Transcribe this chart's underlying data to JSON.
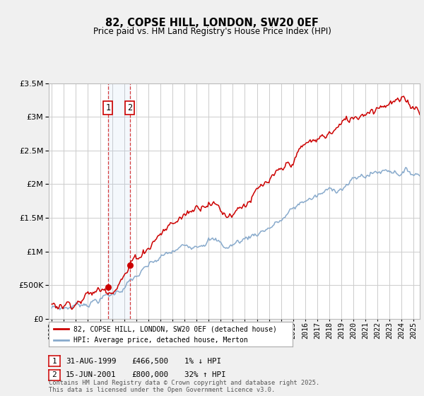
{
  "title": "82, COPSE HILL, LONDON, SW20 0EF",
  "subtitle": "Price paid vs. HM Land Registry's House Price Index (HPI)",
  "legend_line1": "82, COPSE HILL, LONDON, SW20 0EF (detached house)",
  "legend_line2": "HPI: Average price, detached house, Merton",
  "annotation1_date": "31-AUG-1999",
  "annotation1_price": "£466,500",
  "annotation1_hpi": "1% ↓ HPI",
  "annotation2_date": "15-JUN-2001",
  "annotation2_price": "£800,000",
  "annotation2_hpi": "32% ↑ HPI",
  "footnote": "Contains HM Land Registry data © Crown copyright and database right 2025.\nThis data is licensed under the Open Government Licence v3.0.",
  "xmin": 1994.75,
  "xmax": 2025.5,
  "ymin": 0,
  "ymax": 3500000,
  "red_color": "#cc0000",
  "blue_color": "#88aacc",
  "bg_color": "#f0f0f0",
  "plot_bg_color": "#ffffff",
  "grid_color": "#cccccc",
  "purchase1_year": 1999.667,
  "purchase1_price": 466500,
  "purchase2_year": 2001.458,
  "purchase2_price": 800000
}
